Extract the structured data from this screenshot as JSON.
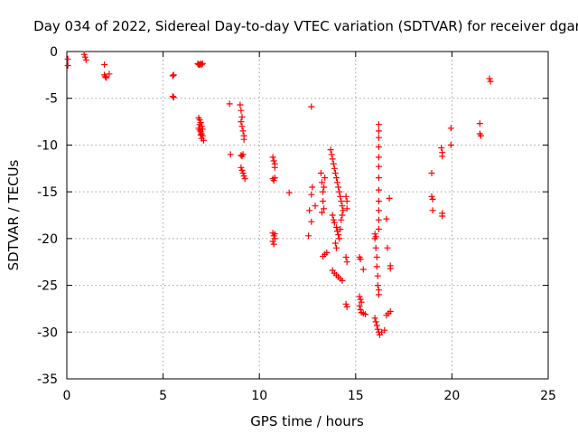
{
  "chart_data": {
    "type": "scatter",
    "title": "Day 034 of 2022, Sidereal Day-to-day VTEC variation (SDTVAR) for receiver dgar",
    "xlabel": "GPS time / hours",
    "ylabel": "SDTVAR / TECUs",
    "xlim": [
      0,
      25
    ],
    "ylim": [
      -35,
      0
    ],
    "xticks": [
      0,
      5,
      10,
      15,
      20,
      25
    ],
    "yticks": [
      0,
      -5,
      -10,
      -15,
      -20,
      -25,
      -30,
      -35
    ],
    "xtick_labels": [
      "0",
      "5",
      "10",
      "15",
      "20",
      "25"
    ],
    "ytick_labels": [
      "0",
      "-5",
      "-10",
      "-15",
      "-20",
      "-25",
      "-30",
      "-35"
    ],
    "grid": true,
    "marker": "+",
    "series": [
      {
        "name": "SDTVAR",
        "color": "#ff0000",
        "points": [
          [
            0.05,
            -0.8
          ],
          [
            0.05,
            -1.5
          ],
          [
            0.9,
            -0.3
          ],
          [
            0.95,
            -0.6
          ],
          [
            1.0,
            -0.9
          ],
          [
            1.95,
            -1.4
          ],
          [
            1.95,
            -2.5
          ],
          [
            2.0,
            -2.7
          ],
          [
            2.05,
            -2.8
          ],
          [
            2.2,
            -2.4
          ],
          [
            5.5,
            -2.6
          ],
          [
            5.55,
            -2.5
          ],
          [
            5.5,
            -4.8
          ],
          [
            5.55,
            -4.9
          ],
          [
            6.8,
            -1.3
          ],
          [
            6.85,
            -1.4
          ],
          [
            6.9,
            -1.4
          ],
          [
            6.95,
            -1.3
          ],
          [
            7.0,
            -1.4
          ],
          [
            7.05,
            -1.3
          ],
          [
            6.85,
            -7.1
          ],
          [
            6.9,
            -7.3
          ],
          [
            6.9,
            -7.8
          ],
          [
            6.95,
            -7.6
          ],
          [
            6.85,
            -8.2
          ],
          [
            6.9,
            -8.4
          ],
          [
            6.95,
            -8.6
          ],
          [
            7.0,
            -8.0
          ],
          [
            7.0,
            -8.8
          ],
          [
            7.05,
            -9.0
          ],
          [
            7.0,
            -9.3
          ],
          [
            7.1,
            -9.5
          ],
          [
            7.05,
            -8.3
          ],
          [
            6.95,
            -8.9
          ],
          [
            8.45,
            -5.6
          ],
          [
            8.5,
            -11.0
          ],
          [
            9.0,
            -5.7
          ],
          [
            9.05,
            -6.3
          ],
          [
            9.1,
            -7.0
          ],
          [
            9.05,
            -7.5
          ],
          [
            9.1,
            -8.0
          ],
          [
            9.15,
            -8.5
          ],
          [
            9.2,
            -9.0
          ],
          [
            9.2,
            -9.4
          ],
          [
            9.05,
            -11.1
          ],
          [
            9.1,
            -11.2
          ],
          [
            9.15,
            -11.0
          ],
          [
            9.05,
            -12.4
          ],
          [
            9.1,
            -12.7
          ],
          [
            9.15,
            -13.0
          ],
          [
            9.2,
            -13.3
          ],
          [
            9.25,
            -13.6
          ],
          [
            10.7,
            -11.3
          ],
          [
            10.75,
            -11.7
          ],
          [
            10.8,
            -12.0
          ],
          [
            10.8,
            -12.4
          ],
          [
            10.7,
            -13.6
          ],
          [
            10.75,
            -13.8
          ],
          [
            10.8,
            -13.5
          ],
          [
            10.7,
            -19.4
          ],
          [
            10.75,
            -19.7
          ],
          [
            10.8,
            -20.0
          ],
          [
            10.7,
            -20.3
          ],
          [
            10.75,
            -20.6
          ],
          [
            10.8,
            -19.5
          ],
          [
            11.55,
            -15.1
          ],
          [
            12.55,
            -19.7
          ],
          [
            12.6,
            -17.0
          ],
          [
            12.7,
            -5.9
          ],
          [
            12.7,
            -18.2
          ],
          [
            12.75,
            -14.5
          ],
          [
            12.7,
            -15.3
          ],
          [
            12.9,
            -16.5
          ],
          [
            13.2,
            -13.0
          ],
          [
            13.25,
            -14.0
          ],
          [
            13.3,
            -15.0
          ],
          [
            13.3,
            -16.0
          ],
          [
            13.35,
            -16.8
          ],
          [
            13.25,
            -17.2
          ],
          [
            13.3,
            -21.9
          ],
          [
            13.4,
            -21.7
          ],
          [
            13.5,
            -21.5
          ],
          [
            13.4,
            -13.5
          ],
          [
            13.35,
            -14.5
          ],
          [
            13.7,
            -10.5
          ],
          [
            13.75,
            -11.0
          ],
          [
            13.8,
            -11.5
          ],
          [
            13.85,
            -12.0
          ],
          [
            13.9,
            -12.5
          ],
          [
            13.95,
            -13.0
          ],
          [
            14.0,
            -13.5
          ],
          [
            14.05,
            -14.0
          ],
          [
            14.1,
            -14.5
          ],
          [
            14.15,
            -15.0
          ],
          [
            14.2,
            -15.5
          ],
          [
            14.25,
            -16.0
          ],
          [
            14.3,
            -16.5
          ],
          [
            14.35,
            -17.0
          ],
          [
            13.8,
            -17.5
          ],
          [
            13.85,
            -18.0
          ],
          [
            13.9,
            -18.3
          ],
          [
            14.0,
            -18.8
          ],
          [
            14.05,
            -19.2
          ],
          [
            14.1,
            -19.6
          ],
          [
            14.15,
            -20.0
          ],
          [
            14.2,
            -19.0
          ],
          [
            14.25,
            -18.0
          ],
          [
            14.3,
            -17.5
          ],
          [
            13.95,
            -20.5
          ],
          [
            14.0,
            -21.0
          ],
          [
            13.8,
            -23.4
          ],
          [
            13.9,
            -23.7
          ],
          [
            14.0,
            -23.9
          ],
          [
            14.1,
            -24.1
          ],
          [
            14.2,
            -24.3
          ],
          [
            14.3,
            -24.5
          ],
          [
            14.5,
            -15.5
          ],
          [
            14.55,
            -16.0
          ],
          [
            14.55,
            -16.8
          ],
          [
            14.5,
            -22.0
          ],
          [
            14.55,
            -22.5
          ],
          [
            14.5,
            -27.0
          ],
          [
            14.55,
            -27.3
          ],
          [
            15.2,
            -22.0
          ],
          [
            15.25,
            -22.2
          ],
          [
            15.2,
            -26.2
          ],
          [
            15.25,
            -26.5
          ],
          [
            15.3,
            -26.8
          ],
          [
            15.2,
            -27.2
          ],
          [
            15.25,
            -27.6
          ],
          [
            15.3,
            -27.9
          ],
          [
            15.4,
            -28.0
          ],
          [
            15.5,
            -28.1
          ],
          [
            15.4,
            -23.3
          ],
          [
            16.0,
            -20.0
          ],
          [
            16.05,
            -21.0
          ],
          [
            16.1,
            -22.0
          ],
          [
            16.1,
            -23.0
          ],
          [
            16.15,
            -24.0
          ],
          [
            16.15,
            -25.0
          ],
          [
            16.2,
            -25.5
          ],
          [
            16.2,
            -26.0
          ],
          [
            16.0,
            -19.5
          ],
          [
            16.05,
            -19.8
          ],
          [
            16.2,
            -7.8
          ],
          [
            16.2,
            -8.5
          ],
          [
            16.2,
            -9.2
          ],
          [
            16.2,
            -10.2
          ],
          [
            16.2,
            -11.3
          ],
          [
            16.2,
            -12.3
          ],
          [
            16.2,
            -13.5
          ],
          [
            16.2,
            -14.8
          ],
          [
            16.2,
            -16.0
          ],
          [
            16.2,
            -17.0
          ],
          [
            16.2,
            -18.0
          ],
          [
            16.2,
            -19.0
          ],
          [
            16.0,
            -28.5
          ],
          [
            16.05,
            -28.9
          ],
          [
            16.1,
            -29.3
          ],
          [
            16.15,
            -29.7
          ],
          [
            16.2,
            -30.0
          ],
          [
            16.25,
            -30.3
          ],
          [
            16.35,
            -30.0
          ],
          [
            16.5,
            -29.8
          ],
          [
            16.6,
            -17.9
          ],
          [
            16.65,
            -21.0
          ],
          [
            16.75,
            -15.7
          ],
          [
            16.8,
            -22.9
          ],
          [
            16.8,
            -23.2
          ],
          [
            16.6,
            -28.2
          ],
          [
            16.7,
            -28.0
          ],
          [
            16.8,
            -27.8
          ],
          [
            18.95,
            -13.0
          ],
          [
            18.95,
            -15.5
          ],
          [
            19.0,
            -15.8
          ],
          [
            19.0,
            -17.0
          ],
          [
            19.45,
            -10.3
          ],
          [
            19.5,
            -10.8
          ],
          [
            19.5,
            -11.2
          ],
          [
            19.5,
            -17.3
          ],
          [
            19.5,
            -17.6
          ],
          [
            19.95,
            -8.2
          ],
          [
            19.95,
            -10.0
          ],
          [
            21.45,
            -7.7
          ],
          [
            21.45,
            -8.8
          ],
          [
            21.5,
            -9.0
          ],
          [
            21.95,
            -2.9
          ],
          [
            22.0,
            -3.2
          ]
        ]
      }
    ]
  }
}
